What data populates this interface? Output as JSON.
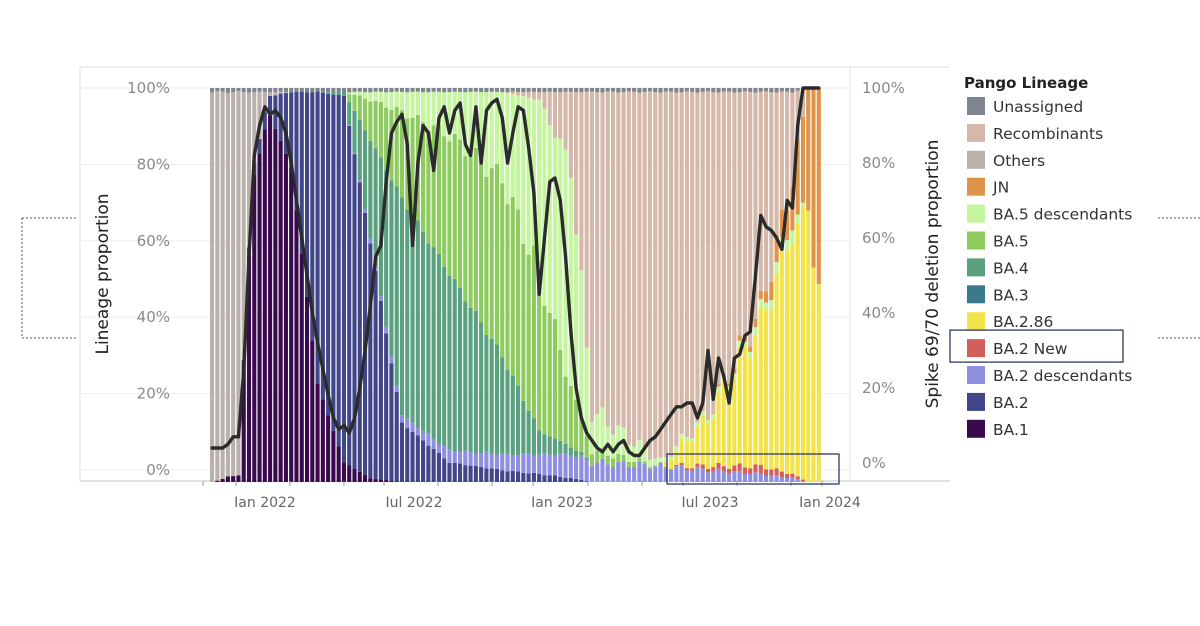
{
  "chart_data": {
    "type": "bar",
    "subtype": "stacked-100-percent-with-line-overlay",
    "x_range": [
      "2021-11",
      "2024-01"
    ],
    "x_tick_labels": [
      "Jan 2022",
      "Jul 2022",
      "Jan 2023",
      "Jul 2023",
      "Jan 2024"
    ],
    "y_left": {
      "label": "Lineage proportion",
      "ticks": [
        "0%",
        "20%",
        "40%",
        "60%",
        "80%",
        "100%"
      ],
      "range": [
        0,
        100
      ]
    },
    "y_right": {
      "label": "Spike 69/70 deletion proportion",
      "ticks": [
        "0%",
        "20%",
        "40%",
        "60%",
        "80%",
        "100%"
      ],
      "range": [
        0,
        100
      ]
    },
    "legend": {
      "title": "Pango Lineage",
      "placement": "right",
      "highlighted_entry": "BA.2 New",
      "entries": [
        {
          "name": "Unassigned",
          "color": "#7f858e"
        },
        {
          "name": "Recombinants",
          "color": "#d4b8aa"
        },
        {
          "name": "Others",
          "color": "#bab0ac"
        },
        {
          "name": "JN",
          "color": "#e0944a"
        },
        {
          "name": "BA.5 descendants",
          "color": "#c5f5a0"
        },
        {
          "name": "BA.5",
          "color": "#8ecb5e"
        },
        {
          "name": "BA.4",
          "color": "#5aa17f"
        },
        {
          "name": "BA.3",
          "color": "#3b7a8c"
        },
        {
          "name": "BA.2.86",
          "color": "#f2e34b"
        },
        {
          "name": "BA.2 New",
          "color": "#d1605a"
        },
        {
          "name": "BA.2 descendants",
          "color": "#8f8fe0"
        },
        {
          "name": "BA.2",
          "color": "#404687"
        },
        {
          "name": "BA.1",
          "color": "#3a0a4f"
        }
      ]
    },
    "bar_count": 116,
    "series_order_bottom_to_top": [
      "BA.1",
      "BA.2",
      "BA.2 descendants",
      "BA.2 New",
      "BA.2.86",
      "BA.3",
      "BA.4",
      "BA.5",
      "BA.5 descendants",
      "JN",
      "Others",
      "Recombinants",
      "Unassigned"
    ],
    "composition_keyframes": [
      {
        "bar": 0,
        "mix": {
          "BA.1": 0,
          "BA.2": 0,
          "BA.2 descendants": 0,
          "BA.2 New": 0,
          "BA.2.86": 0,
          "BA.4": 0,
          "BA.5": 0,
          "BA.5 descendants": 0,
          "JN": 0,
          "Others": 99,
          "Recombinants": 0,
          "Unassigned": 1
        }
      },
      {
        "bar": 5,
        "mix": {
          "BA.1": 2,
          "BA.2": 0,
          "BA.2 descendants": 0,
          "BA.2 New": 0,
          "BA.2.86": 0,
          "BA.4": 0,
          "BA.5": 0,
          "BA.5 descendants": 0,
          "JN": 0,
          "Others": 97,
          "Recombinants": 0,
          "Unassigned": 1
        }
      },
      {
        "bar": 8,
        "mix": {
          "BA.1": 80,
          "BA.2": 3,
          "BA.2 descendants": 0,
          "BA.2 New": 0,
          "BA.2.86": 0,
          "BA.4": 0,
          "BA.5": 0,
          "BA.5 descendants": 0,
          "JN": 0,
          "Others": 16,
          "Recombinants": 0,
          "Unassigned": 1
        }
      },
      {
        "bar": 11,
        "mix": {
          "BA.1": 93,
          "BA.2": 5,
          "BA.2 descendants": 0,
          "BA.2 New": 0,
          "BA.2.86": 0,
          "BA.4": 0,
          "BA.5": 0,
          "BA.5 descendants": 0,
          "JN": 0,
          "Others": 1,
          "Recombinants": 0,
          "Unassigned": 1
        }
      },
      {
        "bar": 15,
        "mix": {
          "BA.1": 80,
          "BA.2": 19,
          "BA.2 descendants": 0,
          "BA.2 New": 0,
          "BA.2.86": 0,
          "BA.4": 0,
          "BA.5": 0,
          "BA.5 descendants": 0,
          "JN": 0,
          "Others": 0,
          "Recombinants": 0,
          "Unassigned": 1
        }
      },
      {
        "bar": 20,
        "mix": {
          "BA.1": 25,
          "BA.2": 74,
          "BA.2 descendants": 0,
          "BA.2 New": 0,
          "BA.2.86": 0,
          "BA.4": 0,
          "BA.5": 0,
          "BA.5 descendants": 0,
          "JN": 0,
          "Others": 0,
          "Recombinants": 0,
          "Unassigned": 1
        }
      },
      {
        "bar": 25,
        "mix": {
          "BA.1": 5,
          "BA.2": 93,
          "BA.2 descendants": 0,
          "BA.2 New": 0,
          "BA.2.86": 0,
          "BA.4": 1,
          "BA.5": 0,
          "BA.5 descendants": 0,
          "JN": 0,
          "Others": 0,
          "Recombinants": 0,
          "Unassigned": 1
        }
      },
      {
        "bar": 30,
        "mix": {
          "BA.1": 1,
          "BA.2": 60,
          "BA.2 descendants": 1,
          "BA.2 New": 0,
          "BA.2.86": 0,
          "BA.4": 25,
          "BA.5": 10,
          "BA.5 descendants": 2,
          "JN": 0,
          "Others": 0,
          "Recombinants": 0,
          "Unassigned": 1
        }
      },
      {
        "bar": 36,
        "mix": {
          "BA.1": 0,
          "BA.2": 15,
          "BA.2 descendants": 2,
          "BA.2 New": 0,
          "BA.2.86": 0,
          "BA.4": 55,
          "BA.5": 22,
          "BA.5 descendants": 5,
          "JN": 0,
          "Others": 0,
          "Recombinants": 0,
          "Unassigned": 1
        }
      },
      {
        "bar": 45,
        "mix": {
          "BA.1": 0,
          "BA.2": 5,
          "BA.2 descendants": 3,
          "BA.2 New": 0,
          "BA.2.86": 0,
          "BA.4": 45,
          "BA.5": 35,
          "BA.5 descendants": 11,
          "JN": 0,
          "Others": 0,
          "Recombinants": 0,
          "Unassigned": 1
        }
      },
      {
        "bar": 55,
        "mix": {
          "BA.1": 0,
          "BA.2": 3,
          "BA.2 descendants": 4,
          "BA.2 New": 0,
          "BA.2.86": 0,
          "BA.4": 25,
          "BA.5": 45,
          "BA.5 descendants": 22,
          "JN": 0,
          "Others": 0,
          "Recombinants": 0,
          "Unassigned": 1
        }
      },
      {
        "bar": 62,
        "mix": {
          "BA.1": 0,
          "BA.2": 2,
          "BA.2 descendants": 5,
          "BA.2 New": 0,
          "BA.2.86": 0,
          "BA.4": 6,
          "BA.5": 40,
          "BA.5 descendants": 44,
          "JN": 0,
          "Others": 0,
          "Recombinants": 2,
          "Unassigned": 1
        }
      },
      {
        "bar": 68,
        "mix": {
          "BA.1": 0,
          "BA.2": 1,
          "BA.2 descendants": 6,
          "BA.2 New": 0,
          "BA.2.86": 0,
          "BA.4": 2,
          "BA.5": 15,
          "BA.5 descendants": 56,
          "JN": 0,
          "Others": 0,
          "Recombinants": 19,
          "Unassigned": 1
        }
      },
      {
        "bar": 72,
        "mix": {
          "BA.1": 0,
          "BA.2": 0,
          "BA.2 descendants": 5,
          "BA.2 New": 0,
          "BA.2.86": 0,
          "BA.4": 0,
          "BA.5": 3,
          "BA.5 descendants": 10,
          "JN": 0,
          "Others": 0,
          "Recombinants": 81,
          "Unassigned": 1
        }
      },
      {
        "bar": 85,
        "mix": {
          "BA.1": 0,
          "BA.2": 0,
          "BA.2 descendants": 4,
          "BA.2 New": 0,
          "BA.2.86": 0,
          "BA.4": 0,
          "BA.5": 0,
          "BA.5 descendants": 1,
          "JN": 0,
          "Others": 0,
          "Recombinants": 94,
          "Unassigned": 1
        }
      },
      {
        "bar": 94,
        "mix": {
          "BA.1": 0,
          "BA.2": 0,
          "BA.2 descendants": 3,
          "BA.2 New": 1,
          "BA.2.86": 12,
          "BA.4": 0,
          "BA.5": 0,
          "BA.5 descendants": 1,
          "JN": 0,
          "Others": 0,
          "Recombinants": 82,
          "Unassigned": 1
        }
      },
      {
        "bar": 104,
        "mix": {
          "BA.1": 0,
          "BA.2": 0,
          "BA.2 descendants": 2,
          "BA.2 New": 2,
          "BA.2.86": 36,
          "BA.4": 0,
          "BA.5": 0,
          "BA.5 descendants": 2,
          "JN": 2,
          "Others": 0,
          "Recombinants": 55,
          "Unassigned": 1
        }
      },
      {
        "bar": 110,
        "mix": {
          "BA.1": 0,
          "BA.2": 0,
          "BA.2 descendants": 1,
          "BA.2 New": 1,
          "BA.2.86": 62,
          "BA.4": 0,
          "BA.5": 0,
          "BA.5 descendants": 3,
          "JN": 10,
          "Others": 0,
          "Recombinants": 22,
          "Unassigned": 1
        }
      },
      {
        "bar": 113,
        "mix": {
          "BA.1": 0,
          "BA.2": 0,
          "BA.2 descendants": 0,
          "BA.2 New": 0,
          "BA.2.86": 68,
          "BA.4": 0,
          "BA.5": 0,
          "BA.5 descendants": 0,
          "JN": 32,
          "Others": 0,
          "Recombinants": 0,
          "Unassigned": 0
        }
      },
      {
        "bar": 115,
        "mix": {
          "BA.1": 0,
          "BA.2": 0,
          "BA.2 descendants": 0,
          "BA.2 New": 0,
          "BA.2.86": 50,
          "BA.4": 0,
          "BA.5": 0,
          "BA.5 descendants": 0,
          "JN": 50,
          "Others": 0,
          "Recombinants": 0,
          "Unassigned": 0
        }
      }
    ],
    "line_series": {
      "name": "",
      "color": "#2b2b2b",
      "values": [
        4,
        4,
        4,
        5,
        7,
        7,
        25,
        55,
        82,
        90,
        95,
        93,
        94,
        92,
        88,
        80,
        70,
        60,
        50,
        40,
        32,
        25,
        18,
        12,
        9,
        10,
        8,
        12,
        20,
        30,
        42,
        55,
        58,
        75,
        88,
        91,
        93,
        85,
        58,
        80,
        90,
        88,
        78,
        92,
        95,
        88,
        94,
        96,
        85,
        82,
        95,
        80,
        94,
        96,
        97,
        92,
        80,
        88,
        95,
        94,
        84,
        72,
        45,
        60,
        75,
        76,
        70,
        55,
        35,
        20,
        12,
        8,
        6,
        4,
        3,
        5,
        3,
        5,
        6,
        3,
        2,
        2,
        4,
        6,
        7,
        9,
        11,
        13,
        15,
        15,
        16,
        16,
        12,
        16,
        30,
        17,
        28,
        23,
        16,
        28,
        29,
        34,
        35,
        50,
        66,
        63,
        62,
        60,
        57,
        70,
        68,
        90,
        100,
        100,
        100,
        100
      ]
    }
  }
}
